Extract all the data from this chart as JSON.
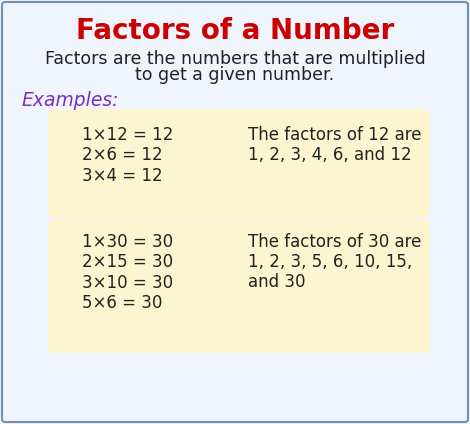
{
  "title": "Factors of a Number",
  "title_color": "#cc0000",
  "title_fontsize": 20,
  "subtitle_line1": "Factors are the numbers that are multiplied",
  "subtitle_line2": "to get a given number.",
  "subtitle_color": "#222222",
  "subtitle_fontsize": 12.5,
  "examples_label": "Examples:",
  "examples_color": "#7b2fbe",
  "examples_fontsize": 13.5,
  "box_bg_color": "#fdf5d0",
  "outer_bg_color": "#f0f4fc",
  "outer_edge_color": "#7090b0",
  "box1_equations": [
    "1×12 = 12",
    "2×6 = 12",
    "3×4 = 12"
  ],
  "box1_factors_line1": "The factors of 12 are",
  "box1_factors_line2": "1, 2, 3, 4, 6, and 12",
  "box2_equations": [
    "1×30 = 30",
    "2×15 = 30",
    "3×10 = 30",
    "5×6 = 30"
  ],
  "box2_factors_line1": "The factors of 30 are",
  "box2_factors_line2": "1, 2, 3, 5, 6, 10, 15,",
  "box2_factors_line3": "and 30",
  "eq_fontsize": 12,
  "factors_fontsize": 12,
  "eq_color": "#222222",
  "factors_color": "#222222"
}
